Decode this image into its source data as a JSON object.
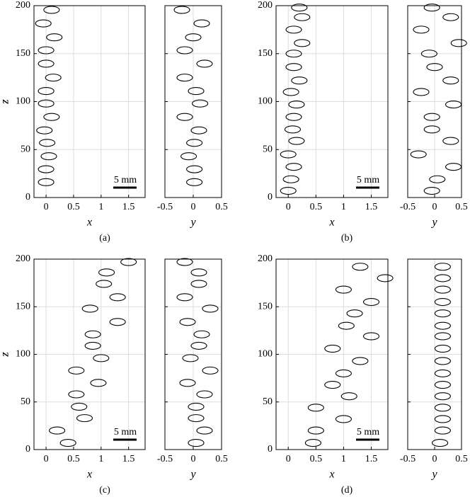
{
  "chart_data": [
    {
      "type": "scatter",
      "caption": "(a)",
      "annotation": "5 mm",
      "xlabel": "x",
      "ylabel": "z",
      "x": [
        0.1,
        -0.05,
        0.15,
        0,
        0,
        0.13,
        0,
        0,
        0.1,
        -0.03,
        0.02,
        0.05,
        0,
        0
      ],
      "values": [
        195.6,
        181.5,
        167,
        153.5,
        139.5,
        125,
        111,
        98,
        84,
        70,
        57,
        43,
        29.5,
        16
      ],
      "xlim": [
        -0.22,
        1.8
      ],
      "ylim": [
        0,
        200
      ],
      "xticks": [
        0,
        0.5,
        1,
        1.5
      ],
      "yticks": [
        0,
        50,
        100,
        150,
        200
      ],
      "grid": true,
      "yticklabels": true
    },
    {
      "type": "scatter",
      "xlabel": "y",
      "x": [
        -0.2,
        0.15,
        0,
        -0.15,
        0.2,
        -0.15,
        0.05,
        0.12,
        -0.15,
        0.1,
        0.02,
        -0.08,
        0.02,
        0.02
      ],
      "values": [
        195.6,
        181.5,
        167,
        153.5,
        139.5,
        125,
        111,
        98,
        84,
        70,
        57,
        43,
        29.5,
        16
      ],
      "xlim": [
        -0.5,
        0.5
      ],
      "ylim": [
        0,
        200
      ],
      "xticks": [
        -0.5,
        0,
        0.5
      ],
      "yticks": [
        0,
        50,
        100,
        150,
        200
      ],
      "grid": true,
      "yticklabels": false
    },
    {
      "type": "scatter",
      "caption": "(b)",
      "annotation": "5 mm",
      "xlabel": "x",
      "ylabel": "z",
      "x": [
        0.2,
        0.25,
        0.1,
        0.25,
        0.1,
        0.1,
        0.2,
        0.05,
        0.15,
        0.1,
        0.08,
        0.15,
        0,
        0.1,
        0.05,
        0
      ],
      "values": [
        198,
        188,
        175,
        161,
        150,
        136,
        122,
        110,
        97,
        84,
        71,
        59,
        45,
        32,
        19,
        7
      ],
      "xlim": [
        -0.22,
        1.8
      ],
      "ylim": [
        0,
        200
      ],
      "xticks": [
        0,
        0.5,
        1,
        1.5
      ],
      "yticks": [
        0,
        50,
        100,
        150,
        200
      ],
      "grid": true,
      "yticklabels": true
    },
    {
      "type": "scatter",
      "xlabel": "y",
      "x": [
        -0.05,
        0.3,
        -0.25,
        0.45,
        -0.1,
        0,
        0.3,
        -0.25,
        0.35,
        -0.05,
        -0.05,
        0.3,
        -0.3,
        0.35,
        0.05,
        -0.05
      ],
      "values": [
        198,
        188,
        175,
        161,
        150,
        136,
        122,
        110,
        97,
        84,
        71,
        59,
        45,
        32,
        19,
        7
      ],
      "xlim": [
        -0.5,
        0.5
      ],
      "ylim": [
        0,
        200
      ],
      "xticks": [
        -0.5,
        0,
        0.5
      ],
      "yticks": [
        0,
        50,
        100,
        150,
        200
      ],
      "grid": true,
      "yticklabels": false
    },
    {
      "type": "scatter",
      "caption": "(c)",
      "annotation": "5 mm",
      "xlabel": "x",
      "ylabel": "z",
      "x": [
        1.5,
        1.1,
        1.05,
        1.3,
        0.8,
        1.3,
        0.85,
        0.85,
        1.0,
        0.55,
        0.95,
        0.55,
        0.6,
        0.7,
        0.2,
        0.4
      ],
      "values": [
        197,
        186,
        174,
        160,
        148,
        134,
        121,
        109,
        96,
        83,
        70,
        58,
        45,
        33,
        20,
        7
      ],
      "xlim": [
        -0.22,
        1.8
      ],
      "ylim": [
        0,
        200
      ],
      "xticks": [
        0,
        0.5,
        1,
        1.5
      ],
      "yticks": [
        0,
        50,
        100,
        150,
        200
      ],
      "grid": true,
      "yticklabels": true
    },
    {
      "type": "scatter",
      "xlabel": "y",
      "x": [
        -0.15,
        0.1,
        0.1,
        -0.15,
        0.3,
        -0.1,
        0.15,
        0.1,
        -0.05,
        0.3,
        -0.1,
        0.2,
        0.05,
        0.05,
        0.2,
        0.05
      ],
      "values": [
        197,
        186,
        174,
        160,
        148,
        134,
        121,
        109,
        96,
        83,
        70,
        58,
        45,
        33,
        20,
        7
      ],
      "xlim": [
        -0.5,
        0.5
      ],
      "ylim": [
        0,
        200
      ],
      "xticks": [
        -0.5,
        0,
        0.5
      ],
      "yticks": [
        0,
        50,
        100,
        150,
        200
      ],
      "grid": true,
      "yticklabels": false
    },
    {
      "type": "scatter",
      "caption": "(d)",
      "annotation": "5 mm",
      "xlabel": "x",
      "ylabel": "z",
      "x": [
        1.3,
        1.75,
        1.0,
        1.5,
        1.2,
        1.05,
        1.5,
        0.8,
        1.3,
        1.0,
        0.8,
        1.1,
        0.5,
        1.0,
        0.5,
        0.45
      ],
      "values": [
        192,
        180,
        168,
        155,
        143,
        130,
        119,
        106,
        93,
        80,
        68,
        56,
        44,
        32,
        20,
        7
      ],
      "xlim": [
        -0.22,
        1.8
      ],
      "ylim": [
        0,
        200
      ],
      "xticks": [
        0,
        0.5,
        1,
        1.5
      ],
      "yticks": [
        0,
        50,
        100,
        150,
        200
      ],
      "grid": true,
      "yticklabels": true
    },
    {
      "type": "scatter",
      "xlabel": "y",
      "x": [
        0.15,
        0.15,
        0.15,
        0.15,
        0.15,
        0.15,
        0.15,
        0.15,
        0.15,
        0.15,
        0.15,
        0.15,
        0.15,
        0.15,
        0.15,
        0.1
      ],
      "values": [
        192,
        180,
        168,
        155,
        143,
        130,
        119,
        106,
        93,
        80,
        68,
        56,
        44,
        32,
        20,
        7
      ],
      "xlim": [
        -0.5,
        0.5
      ],
      "ylim": [
        0,
        200
      ],
      "xticks": [
        -0.5,
        0,
        0.5
      ],
      "yticks": [
        0,
        50,
        100,
        150,
        200
      ],
      "grid": true,
      "yticklabels": false
    }
  ]
}
